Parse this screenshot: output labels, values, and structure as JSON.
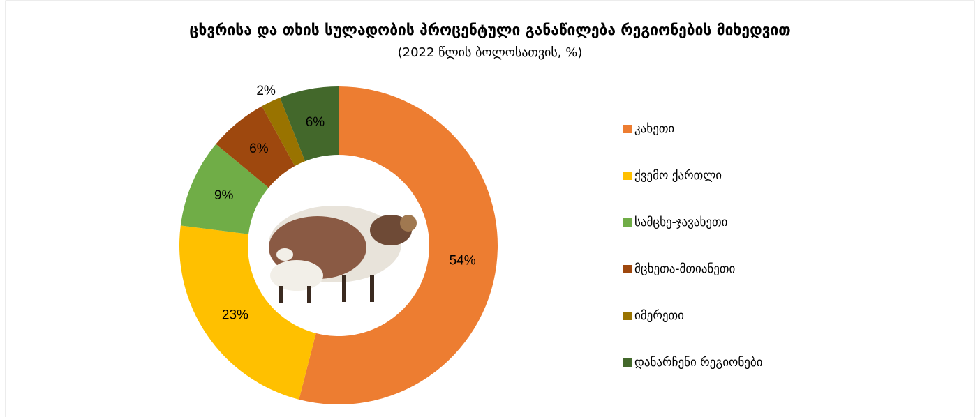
{
  "chart_data": {
    "type": "donut",
    "title": "ცხვრისა და თხის სულადობის პროცენტული განაწილება რეგიონების მიხედვით",
    "subtitle": "(2022 წლის ბოლოსათვის, %)",
    "categories": [
      "კახეთი",
      "ქვემო ქართლი",
      "სამცხე-ჯავახეთი",
      "მცხეთა-მთიანეთი",
      "იმერეთი",
      "დანარჩენი რეგიონები"
    ],
    "values": [
      54,
      23,
      9,
      6,
      2,
      6
    ],
    "value_labels": [
      "54%",
      "23%",
      "9%",
      "6%",
      "2%",
      "6%"
    ],
    "colors": [
      "#ED7D31",
      "#FFC000",
      "#70AD47",
      "#9E480E",
      "#997300",
      "#43682B"
    ],
    "legend": "right"
  }
}
